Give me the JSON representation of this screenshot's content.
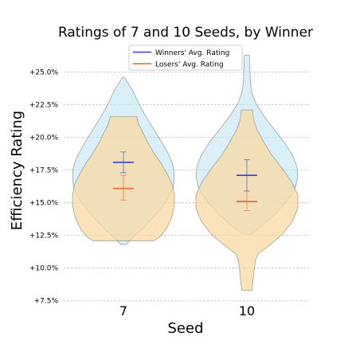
{
  "chart_data": {
    "type": "violin",
    "title": "Ratings of 7 and 10 Seeds, by Winner",
    "xlabel": "Seed",
    "ylabel": "Efficiency Rating",
    "categories": [
      "7",
      "10"
    ],
    "y_ticks": [
      "+7.5%",
      "+10.0%",
      "+12.5%",
      "+15.0%",
      "+17.5%",
      "+20.0%",
      "+22.5%",
      "+25.0%"
    ],
    "y_tick_values": [
      7.5,
      10.0,
      12.5,
      15.0,
      17.5,
      20.0,
      22.5,
      25.0
    ],
    "ylim": [
      7.3,
      26.5
    ],
    "grid": true,
    "legend_position": "top-center",
    "series": [
      {
        "name": "Winners' Avg. Rating",
        "line_color": "#3b3bd6",
        "fill_color": "#bfe6f5",
        "groups": [
          {
            "category": "7",
            "mean": 18.1,
            "min": 11.8,
            "max": 24.6,
            "error_low": 17.3,
            "error_high": 18.9,
            "profile": [
              [
                11.8,
                0.05
              ],
              [
                12.4,
                0.2
              ],
              [
                13.2,
                0.42
              ],
              [
                14.2,
                0.66
              ],
              [
                15.2,
                0.86
              ],
              [
                16.2,
                0.98
              ],
              [
                17.0,
                1.0
              ],
              [
                17.8,
                0.98
              ],
              [
                18.6,
                0.9
              ],
              [
                19.6,
                0.76
              ],
              [
                20.6,
                0.6
              ],
              [
                21.6,
                0.44
              ],
              [
                22.6,
                0.3
              ],
              [
                23.6,
                0.18
              ],
              [
                24.6,
                0.02
              ]
            ]
          },
          {
            "category": "10",
            "mean": 17.1,
            "min": 12.6,
            "max": 26.3,
            "error_low": 15.9,
            "error_high": 18.3,
            "profile": [
              [
                12.6,
                0.08
              ],
              [
                13.2,
                0.28
              ],
              [
                14.0,
                0.52
              ],
              [
                15.0,
                0.76
              ],
              [
                16.0,
                0.94
              ],
              [
                17.0,
                1.0
              ],
              [
                17.8,
                0.98
              ],
              [
                18.6,
                0.9
              ],
              [
                19.6,
                0.74
              ],
              [
                20.6,
                0.54
              ],
              [
                21.6,
                0.34
              ],
              [
                22.6,
                0.18
              ],
              [
                23.4,
                0.1
              ],
              [
                24.2,
                0.07
              ],
              [
                25.2,
                0.06
              ],
              [
                26.3,
                0.05
              ]
            ]
          }
        ]
      },
      {
        "name": "Losers' Avg. Rating",
        "line_color": "#e8602c",
        "fill_color": "#f8d9a0",
        "groups": [
          {
            "category": "7",
            "mean": 16.1,
            "min": 12.1,
            "max": 21.6,
            "error_low": 15.2,
            "error_high": 17.1,
            "profile": [
              [
                12.1,
                0.6
              ],
              [
                12.4,
                0.72
              ],
              [
                13.0,
                0.84
              ],
              [
                13.8,
                0.94
              ],
              [
                14.8,
                1.0
              ],
              [
                15.6,
                1.0
              ],
              [
                16.4,
                0.96
              ],
              [
                17.2,
                0.86
              ],
              [
                18.0,
                0.74
              ],
              [
                18.8,
                0.6
              ],
              [
                19.6,
                0.48
              ],
              [
                20.4,
                0.38
              ],
              [
                21.0,
                0.3
              ],
              [
                21.6,
                0.26
              ]
            ]
          },
          {
            "category": "10",
            "mean": 15.1,
            "min": 8.3,
            "max": 22.1,
            "error_low": 14.4,
            "error_high": 15.9,
            "profile": [
              [
                8.3,
                0.1
              ],
              [
                9.0,
                0.12
              ],
              [
                9.8,
                0.14
              ],
              [
                10.6,
                0.17
              ],
              [
                11.1,
                0.22
              ],
              [
                11.8,
                0.46
              ],
              [
                12.6,
                0.7
              ],
              [
                13.6,
                0.9
              ],
              [
                14.6,
                1.0
              ],
              [
                15.6,
                1.0
              ],
              [
                16.6,
                0.88
              ],
              [
                17.6,
                0.7
              ],
              [
                18.6,
                0.5
              ],
              [
                19.6,
                0.34
              ],
              [
                20.6,
                0.2
              ],
              [
                21.4,
                0.13
              ],
              [
                22.1,
                0.11
              ]
            ]
          }
        ]
      }
    ]
  }
}
